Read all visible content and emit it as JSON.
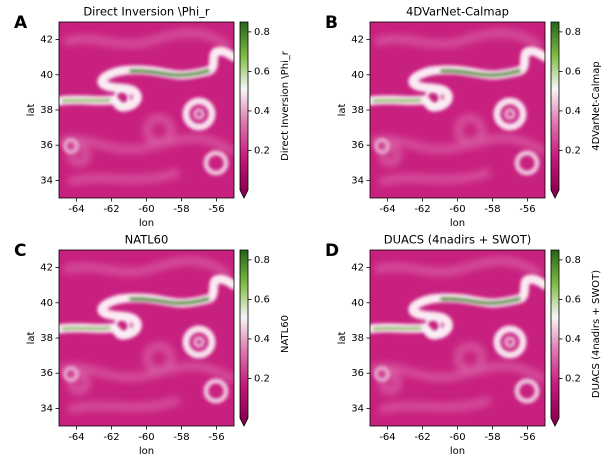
{
  "chart_data": [
    {
      "type": "heatmap",
      "panel_label": "A",
      "title": "Direct Inversion \\Phi_r",
      "xlabel": "lon",
      "ylabel": "lat",
      "colorbar_label": "Direct Inversion \\Phi_r",
      "xlim": [
        -65,
        -55
      ],
      "xticks": [
        -64,
        -62,
        -60,
        -58,
        -56
      ],
      "ylim": [
        33,
        43
      ],
      "yticks": [
        34,
        36,
        38,
        40,
        42
      ],
      "clim": [
        0,
        0.85
      ],
      "cticks": [
        0.2,
        0.4,
        0.6,
        0.8
      ],
      "colormap": [
        "#8e0152",
        "#c51b7d",
        "#de77ae",
        "#f7f7f7",
        "#7fbc41",
        "#276419"
      ]
    },
    {
      "type": "heatmap",
      "panel_label": "B",
      "title": "4DVarNet-Calmap",
      "xlabel": "lon",
      "ylabel": "lat",
      "colorbar_label": "4DVarNet-Calmap",
      "xlim": [
        -65,
        -55
      ],
      "xticks": [
        -64,
        -62,
        -60,
        -58,
        -56
      ],
      "ylim": [
        33,
        43
      ],
      "yticks": [
        34,
        36,
        38,
        40,
        42
      ],
      "clim": [
        0,
        0.85
      ],
      "cticks": [
        0.2,
        0.4,
        0.6,
        0.8
      ],
      "colormap": [
        "#8e0152",
        "#c51b7d",
        "#de77ae",
        "#f7f7f7",
        "#7fbc41",
        "#276419"
      ]
    },
    {
      "type": "heatmap",
      "panel_label": "C",
      "title": "NATL60",
      "xlabel": "lon",
      "ylabel": "lat",
      "colorbar_label": "NATL60",
      "xlim": [
        -65,
        -55
      ],
      "xticks": [
        -64,
        -62,
        -60,
        -58,
        -56
      ],
      "ylim": [
        33,
        43
      ],
      "yticks": [
        34,
        36,
        38,
        40,
        42
      ],
      "clim": [
        0,
        0.85
      ],
      "cticks": [
        0.2,
        0.4,
        0.6,
        0.8
      ],
      "colormap": [
        "#8e0152",
        "#c51b7d",
        "#de77ae",
        "#f7f7f7",
        "#7fbc41",
        "#276419"
      ]
    },
    {
      "type": "heatmap",
      "panel_label": "D",
      "title": "DUACS (4nadirs + SWOT)",
      "xlabel": "lon",
      "ylabel": "lat",
      "colorbar_label": "DUACS (4nadirs + SWOT)",
      "xlim": [
        -65,
        -55
      ],
      "xticks": [
        -64,
        -62,
        -60,
        -58,
        -56
      ],
      "ylim": [
        33,
        43
      ],
      "yticks": [
        34,
        36,
        38,
        40,
        42
      ],
      "clim": [
        0,
        0.85
      ],
      "cticks": [
        0.2,
        0.4,
        0.6,
        0.8
      ],
      "colormap": [
        "#8e0152",
        "#c51b7d",
        "#de77ae",
        "#f7f7f7",
        "#7fbc41",
        "#276419"
      ]
    }
  ]
}
